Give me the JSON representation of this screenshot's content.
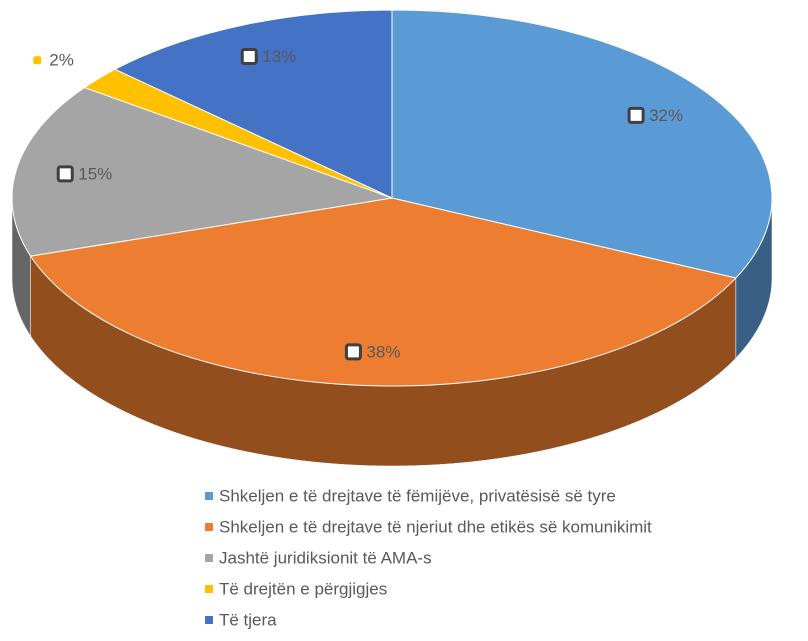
{
  "chart_data": {
    "type": "pie",
    "categories": [
      "Shkeljen e të drejtave të fëmijëve, privatësisë së tyre",
      "Shkeljen e të drejtave të njeriut dhe etikës së komunikimit",
      "Jashtë juridiksionit të AMA-s",
      "Të drejtën e përgjigjes",
      "Të tjera"
    ],
    "values": [
      32,
      38,
      15,
      2,
      13
    ],
    "value_labels": [
      "32%",
      "38%",
      "15%",
      "2%",
      "13%"
    ],
    "colors": [
      "#5b9bd5",
      "#ed7d31",
      "#a5a5a5",
      "#ffc000",
      "#4472c4"
    ],
    "legend": "bottom"
  }
}
